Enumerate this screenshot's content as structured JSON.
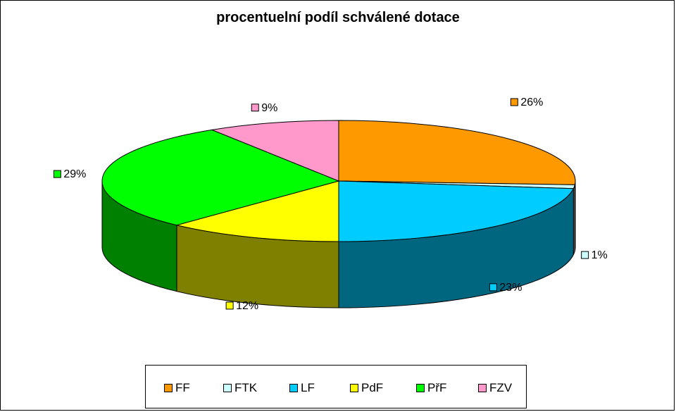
{
  "chart_data": {
    "type": "pie",
    "title": "procentuelní podíl schválené dotace",
    "categories": [
      "FF",
      "FTK",
      "LF",
      "PdF",
      "PřF",
      "FZV"
    ],
    "values": [
      26,
      1,
      23,
      12,
      29,
      9
    ],
    "data_labels": [
      "26%",
      "1%",
      "23%",
      "12%",
      "29%",
      "9%"
    ],
    "colors": [
      "#FF9900",
      "#CCFFFF",
      "#00CCFF",
      "#FFFF00",
      "#00FF00",
      "#FF99CC"
    ],
    "side_colors": [
      "#7F4C00",
      "#667F7F",
      "#006680",
      "#808000",
      "#008000",
      "#7F4C66"
    ],
    "three_d": true,
    "legend_position": "bottom"
  }
}
